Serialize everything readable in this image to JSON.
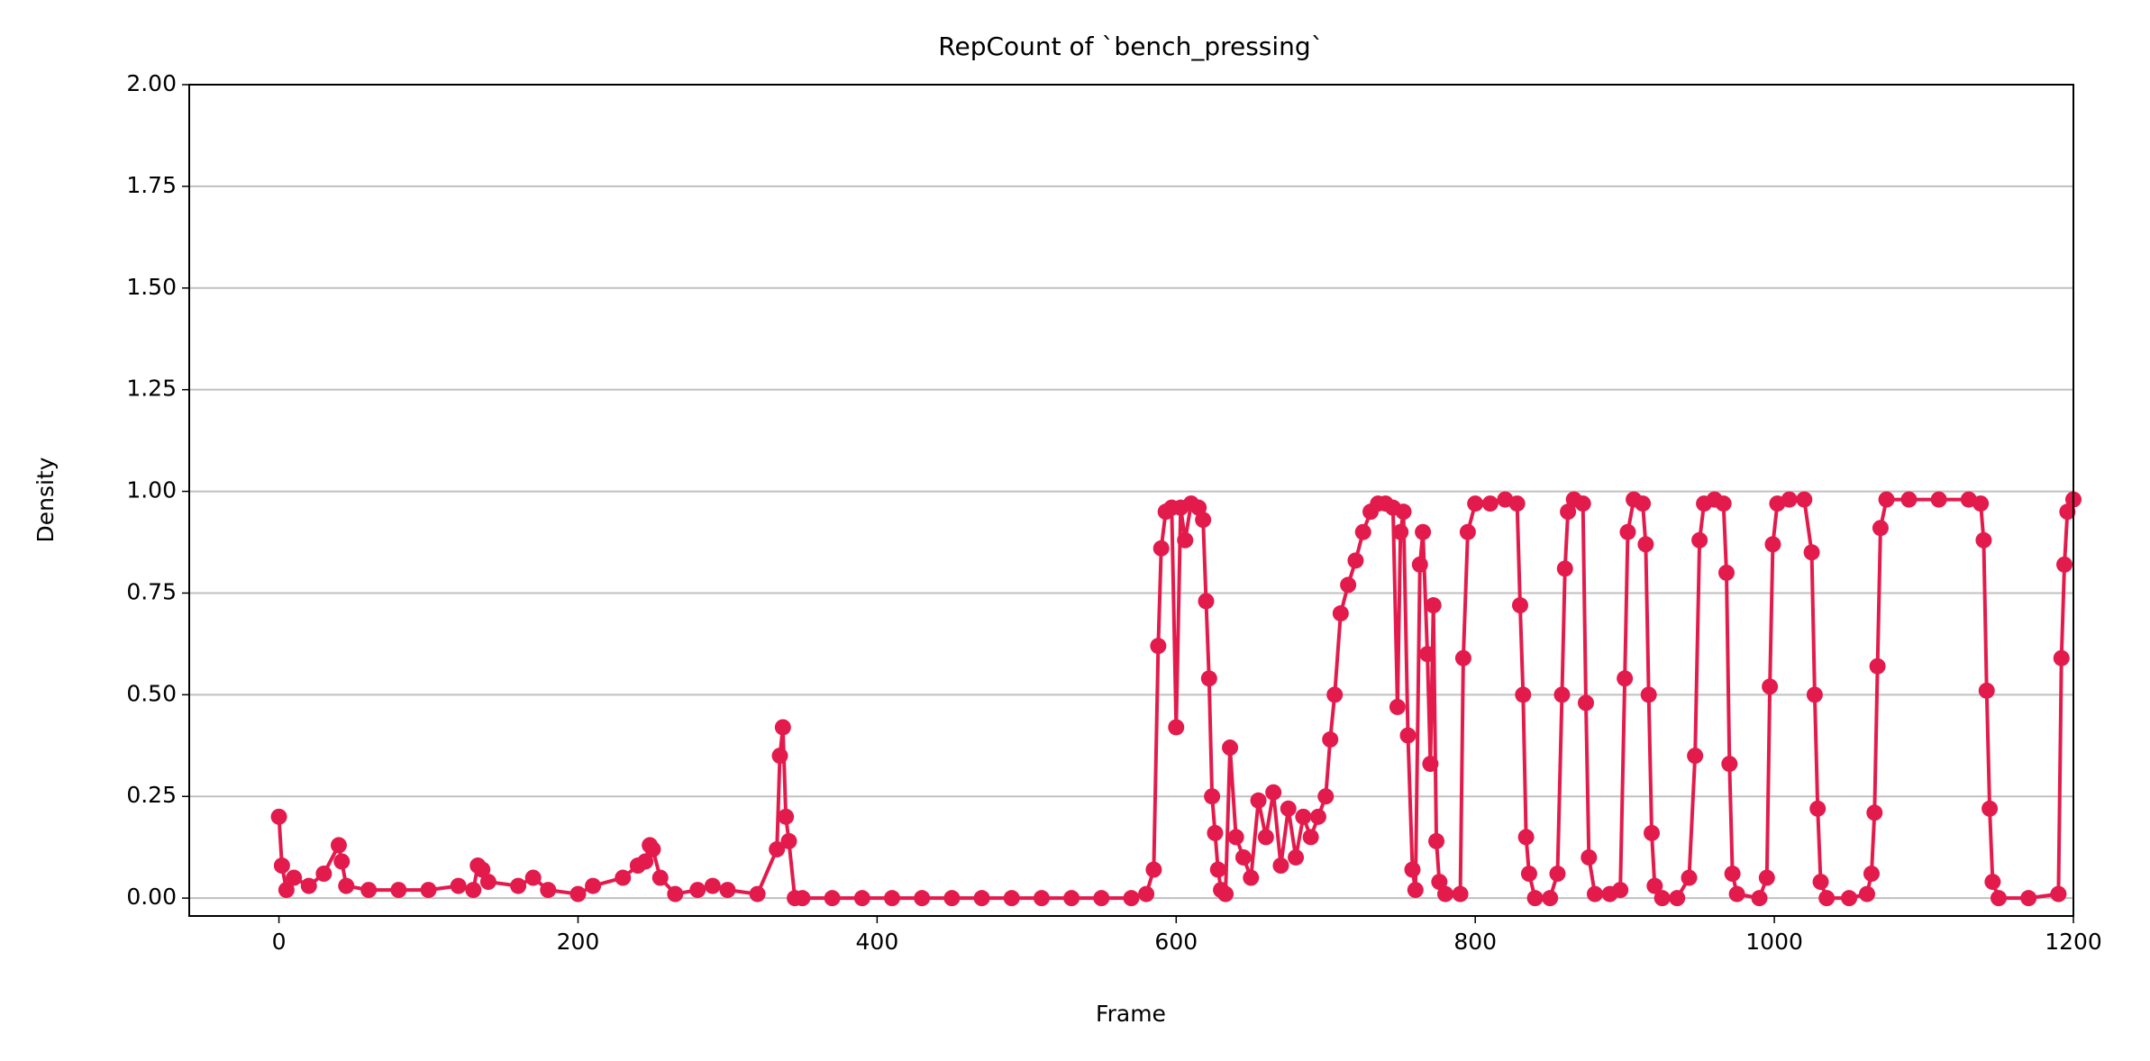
{
  "chart_data": {
    "type": "line",
    "title": "RepCount of `bench_pressing`",
    "x_label": "Frame",
    "y_label": "Density",
    "x": [
      0,
      2,
      5,
      10,
      20,
      30,
      40,
      42,
      45,
      60,
      80,
      100,
      120,
      130,
      133,
      136,
      140,
      160,
      170,
      180,
      200,
      210,
      230,
      240,
      245,
      248,
      250,
      255,
      265,
      280,
      290,
      300,
      320,
      333,
      335,
      337,
      339,
      341,
      345,
      350,
      370,
      390,
      410,
      430,
      450,
      470,
      490,
      510,
      530,
      550,
      570,
      580,
      585,
      588,
      590,
      593,
      597,
      600,
      603,
      606,
      610,
      615,
      618,
      620,
      622,
      624,
      626,
      628,
      630,
      633,
      636,
      640,
      645,
      650,
      655,
      660,
      665,
      670,
      675,
      680,
      685,
      690,
      695,
      700,
      703,
      706,
      710,
      715,
      720,
      725,
      730,
      735,
      740,
      745,
      748,
      750,
      752,
      755,
      758,
      760,
      763,
      765,
      768,
      770,
      772,
      774,
      776,
      780,
      790,
      792,
      795,
      800,
      810,
      820,
      828,
      830,
      832,
      834,
      836,
      840,
      850,
      855,
      858,
      860,
      862,
      866,
      872,
      874,
      876,
      880,
      890,
      897,
      900,
      902,
      906,
      912,
      914,
      916,
      918,
      920,
      925,
      935,
      943,
      947,
      950,
      953,
      960,
      966,
      968,
      970,
      972,
      975,
      990,
      995,
      997,
      999,
      1002,
      1010,
      1020,
      1025,
      1027,
      1029,
      1031,
      1035,
      1050,
      1062,
      1065,
      1067,
      1069,
      1071,
      1075,
      1090,
      1110,
      1130,
      1138,
      1140,
      1142,
      1144,
      1146,
      1150,
      1170,
      1190,
      1192,
      1194,
      1196,
      1200
    ],
    "series": [
      {
        "color": "#e31b4c",
        "values": [
          0.2,
          0.08,
          0.02,
          0.05,
          0.03,
          0.06,
          0.13,
          0.09,
          0.03,
          0.02,
          0.02,
          0.02,
          0.03,
          0.02,
          0.08,
          0.07,
          0.04,
          0.03,
          0.05,
          0.02,
          0.01,
          0.03,
          0.05,
          0.08,
          0.09,
          0.13,
          0.12,
          0.05,
          0.01,
          0.02,
          0.03,
          0.02,
          0.01,
          0.12,
          0.35,
          0.42,
          0.2,
          0.14,
          0.0,
          0.0,
          0.0,
          0.0,
          0.0,
          0.0,
          0.0,
          0.0,
          0.0,
          0.0,
          0.0,
          0.0,
          0.0,
          0.01,
          0.07,
          0.62,
          0.86,
          0.95,
          0.96,
          0.42,
          0.96,
          0.88,
          0.97,
          0.96,
          0.93,
          0.73,
          0.54,
          0.25,
          0.16,
          0.07,
          0.02,
          0.01,
          0.37,
          0.15,
          0.1,
          0.05,
          0.24,
          0.15,
          0.26,
          0.08,
          0.22,
          0.1,
          0.2,
          0.15,
          0.2,
          0.25,
          0.39,
          0.5,
          0.7,
          0.77,
          0.83,
          0.9,
          0.95,
          0.97,
          0.97,
          0.96,
          0.47,
          0.9,
          0.95,
          0.4,
          0.07,
          0.02,
          0.82,
          0.9,
          0.6,
          0.33,
          0.72,
          0.14,
          0.04,
          0.01,
          0.01,
          0.59,
          0.9,
          0.97,
          0.97,
          0.98,
          0.97,
          0.72,
          0.5,
          0.15,
          0.06,
          0.0,
          0.0,
          0.06,
          0.5,
          0.81,
          0.95,
          0.98,
          0.97,
          0.48,
          0.1,
          0.01,
          0.01,
          0.02,
          0.54,
          0.9,
          0.98,
          0.97,
          0.87,
          0.5,
          0.16,
          0.03,
          0.0,
          0.0,
          0.05,
          0.35,
          0.88,
          0.97,
          0.98,
          0.97,
          0.8,
          0.33,
          0.06,
          0.01,
          0.0,
          0.05,
          0.52,
          0.87,
          0.97,
          0.98,
          0.98,
          0.85,
          0.5,
          0.22,
          0.04,
          0.0,
          0.0,
          0.01,
          0.06,
          0.21,
          0.57,
          0.91,
          0.98,
          0.98,
          0.98,
          0.98,
          0.97,
          0.88,
          0.51,
          0.22,
          0.04,
          0.0,
          0.0,
          0.01,
          0.59,
          0.82,
          0.95,
          0.98
        ]
      }
    ],
    "xlim": [
      -60,
      1200
    ],
    "ylim": [
      -0.044,
      2
    ],
    "xticks": [
      0,
      200,
      400,
      600,
      800,
      1000,
      1200
    ],
    "yticks": [
      {
        "value": 0,
        "label": "0.00"
      },
      {
        "value": 0.25,
        "label": "0.25"
      },
      {
        "value": 0.5,
        "label": "0.50"
      },
      {
        "value": 0.75,
        "label": "0.75"
      },
      {
        "value": 1,
        "label": "1.00"
      },
      {
        "value": 1.25,
        "label": "1.25"
      },
      {
        "value": 1.5,
        "label": "1.50"
      },
      {
        "value": 1.75,
        "label": "1.75"
      },
      {
        "value": 2,
        "label": "2.00"
      }
    ],
    "grid": "y"
  }
}
